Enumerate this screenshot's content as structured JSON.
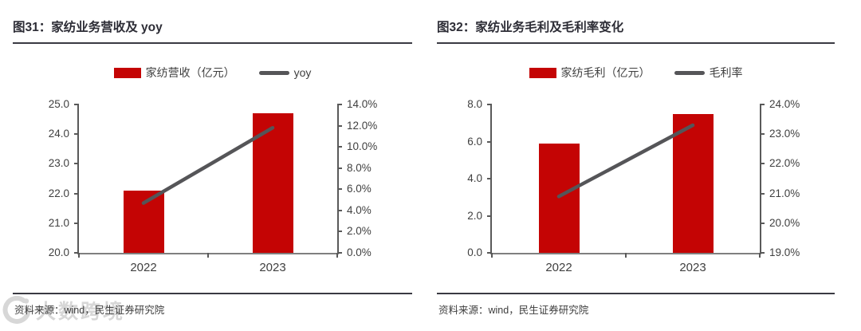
{
  "colors": {
    "bar": "#c40404",
    "line": "#555558",
    "axis_line": "#595959",
    "axis_text": "#3f3f3f",
    "title_text": "#2d2d36",
    "rule": "#3a3a42",
    "source_text": "#3d3d3d",
    "watermark": "#d7d7d7"
  },
  "watermark": {
    "text": "大数跨境"
  },
  "chart_data": [
    {
      "type": "bar",
      "title": "图31：家纺业务营收及 yoy",
      "categories": [
        "2022",
        "2023"
      ],
      "series": [
        {
          "name": "家纺营收（亿元）",
          "kind": "bar",
          "axis": "left",
          "values": [
            22.1,
            24.7
          ]
        },
        {
          "name": "yoy",
          "kind": "line",
          "axis": "right",
          "values": [
            4.7,
            11.8
          ]
        }
      ],
      "left_axis": {
        "min": 20,
        "max": 25,
        "step": 1,
        "decimals": 1,
        "suffix": ""
      },
      "right_axis": {
        "min": 0,
        "max": 14,
        "step": 2,
        "decimals": 1,
        "suffix": "%"
      },
      "grid": false,
      "legend_position": "top",
      "source": "资料来源：wind，民生证券研究院"
    },
    {
      "type": "bar",
      "title": "图32：家纺业务毛利及毛利率变化",
      "categories": [
        "2022",
        "2023"
      ],
      "series": [
        {
          "name": "家纺毛利（亿元）",
          "kind": "bar",
          "axis": "left",
          "values": [
            5.9,
            7.5
          ]
        },
        {
          "name": "毛利率",
          "kind": "line",
          "axis": "right",
          "values": [
            20.9,
            23.3
          ]
        }
      ],
      "left_axis": {
        "min": 0,
        "max": 8,
        "step": 2,
        "decimals": 1,
        "suffix": ""
      },
      "right_axis": {
        "min": 19,
        "max": 24,
        "step": 1,
        "decimals": 1,
        "suffix": "%"
      },
      "grid": false,
      "legend_position": "top",
      "source": "资料来源：wind，民生证券研究院"
    }
  ]
}
